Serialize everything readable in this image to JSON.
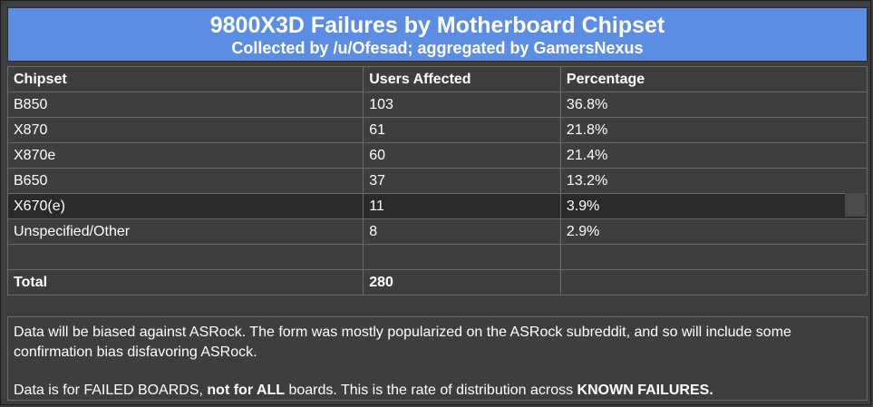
{
  "header": {
    "title": "9800X3D Failures by Motherboard Chipset",
    "subtitle": "Collected by /u/Ofesad; aggregated by GamersNexus"
  },
  "table": {
    "columns": [
      "Chipset",
      "Users Affected",
      "Percentage"
    ],
    "rows": [
      {
        "chipset": "B850",
        "users": "103",
        "pct": "36.8%"
      },
      {
        "chipset": "X870",
        "users": "61",
        "pct": "21.8%"
      },
      {
        "chipset": "X870e",
        "users": "60",
        "pct": "21.4%"
      },
      {
        "chipset": "B650",
        "users": "37",
        "pct": "13.2%"
      },
      {
        "chipset": "X670(e)",
        "users": "11",
        "pct": "3.9%"
      },
      {
        "chipset": "Unspecified/Other",
        "users": "8",
        "pct": "2.9%"
      }
    ],
    "total_label": "Total",
    "total_value": "280"
  },
  "notes": {
    "bias": "Data will be biased against ASRock. The form was mostly popularized on the ASRock subreddit, and so will include some confirmation bias disfavoring ASRock.",
    "scope_1": "Data is for FAILED BOARDS, ",
    "scope_2": "not for ALL",
    "scope_3": " boards. This is the rate of distribution across ",
    "scope_4": "KNOWN FAILURES."
  },
  "colors": {
    "header_bg": "#5b8de2",
    "panel_bg": "#3e3e3e",
    "highlight_row": "#2a2a2a"
  },
  "chart_data": {
    "type": "table",
    "title": "9800X3D Failures by Motherboard Chipset",
    "subtitle": "Collected by /u/Ofesad; aggregated by GamersNexus",
    "columns": [
      "Chipset",
      "Users Affected",
      "Percentage"
    ],
    "categories": [
      "B850",
      "X870",
      "X870e",
      "B650",
      "X670(e)",
      "Unspecified/Other"
    ],
    "series": [
      {
        "name": "Users Affected",
        "values": [
          103,
          61,
          60,
          37,
          11,
          8
        ]
      },
      {
        "name": "Percentage",
        "values": [
          36.8,
          21.8,
          21.4,
          13.2,
          3.9,
          2.9
        ]
      }
    ],
    "total": 280
  }
}
